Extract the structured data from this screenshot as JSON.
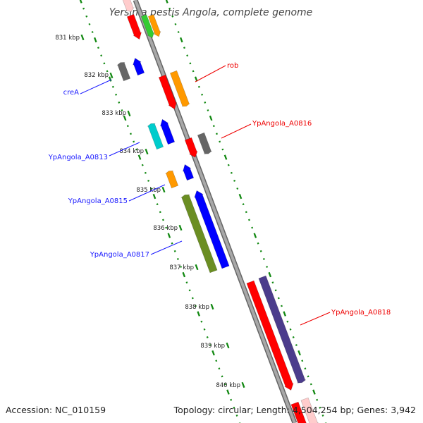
{
  "title": "Yersinia pestis Angola, complete genome",
  "footer": {
    "accession": "Accession: NC_010159",
    "topology": "Topology: circular; Length: 4,504,254 bp; Genes: 3,942"
  },
  "scale_labels": [
    "831 kbp",
    "832 kbp",
    "833 kbp",
    "834 kbp",
    "835 kbp",
    "836 kbp",
    "837 kbp",
    "838 kbp",
    "839 kbp",
    "840 kbp"
  ],
  "gene_labels": [
    {
      "text": "creA",
      "strand": "forward"
    },
    {
      "text": "YpAngola_A0813",
      "strand": "forward"
    },
    {
      "text": "YpAngola_A0815",
      "strand": "forward"
    },
    {
      "text": "YpAngola_A0817",
      "strand": "forward"
    },
    {
      "text": "rob",
      "strand": "reverse"
    },
    {
      "text": "YpAngola_A0816",
      "strand": "reverse"
    },
    {
      "text": "YpAngola_A0818",
      "strand": "reverse"
    }
  ],
  "colors": {
    "backbone": "#999999",
    "backbone_edge": "#666666",
    "tick": "#118811",
    "label_forward": "#1a1aff",
    "label_reverse": "#ee0000",
    "red": "#ff0000",
    "blue": "#0000ff",
    "orange": "#ff9900",
    "gray": "#666666",
    "cyan": "#00cccc",
    "olive": "#6b8e23",
    "indigo": "#4b3c8c",
    "green": "#33cc33",
    "pink": "#ffcccc"
  }
}
